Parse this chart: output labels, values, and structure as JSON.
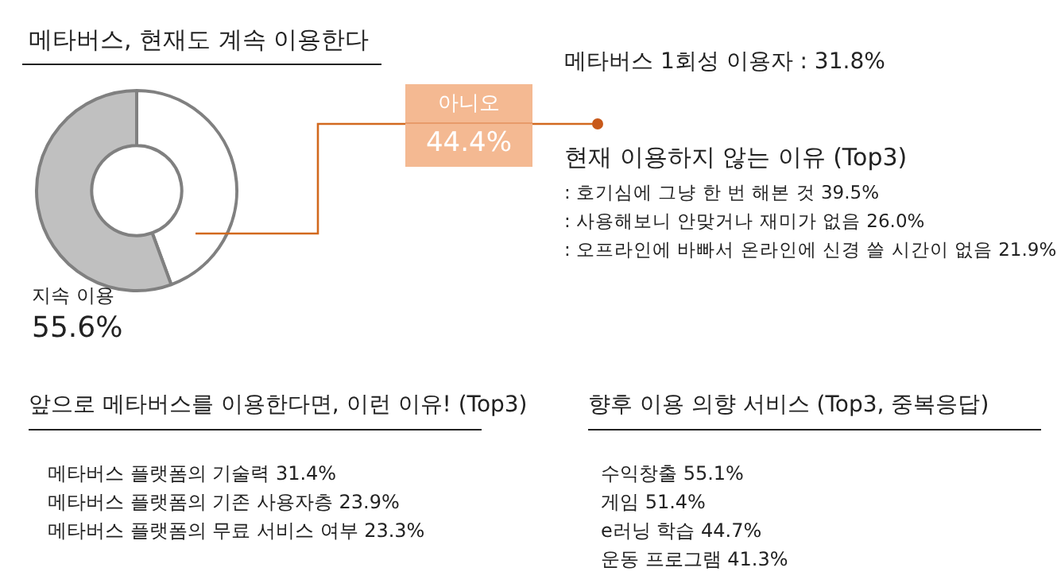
{
  "chart_data": {
    "type": "donut",
    "title": "메타버스, 현재도 계속 이용한다",
    "categories": [
      "아니오",
      "지속 이용"
    ],
    "values": [
      44.4,
      55.6
    ],
    "colors": [
      "#ffffff",
      "#c0c0c0"
    ],
    "value_labels": [
      "44.4%",
      "55.6%"
    ],
    "annotations": [
      "메타버스 1회성 이용자 : 31.8%",
      "현재 이용하지 않는 이유 (Top3)",
      ": 호기심에 그냥 한 번 해본 것 39.5%",
      ": 사용해보니 안맞거나 재미가 없음 26.0%",
      ": 오프라인에 바빠서 온라인에 신경 쓸 시간이 없음 21.9%",
      "앞으로 메타버스를 이용한다면, 이런 이유! (Top3)",
      "메타버스 플랫폼의 기술력 31.4%",
      "메타버스 플랫폼의 기존 사용자층 23.9%",
      "메타버스 플랫폼의 무료 서비스 여부 23.3%",
      "향후 이용 의향 서비스 (Top3, 중복응답)",
      "수익창출 55.1%",
      "게임 51.4%",
      "e러닝 학습 44.7%",
      "운동 프로그램 41.3%"
    ]
  }
}
